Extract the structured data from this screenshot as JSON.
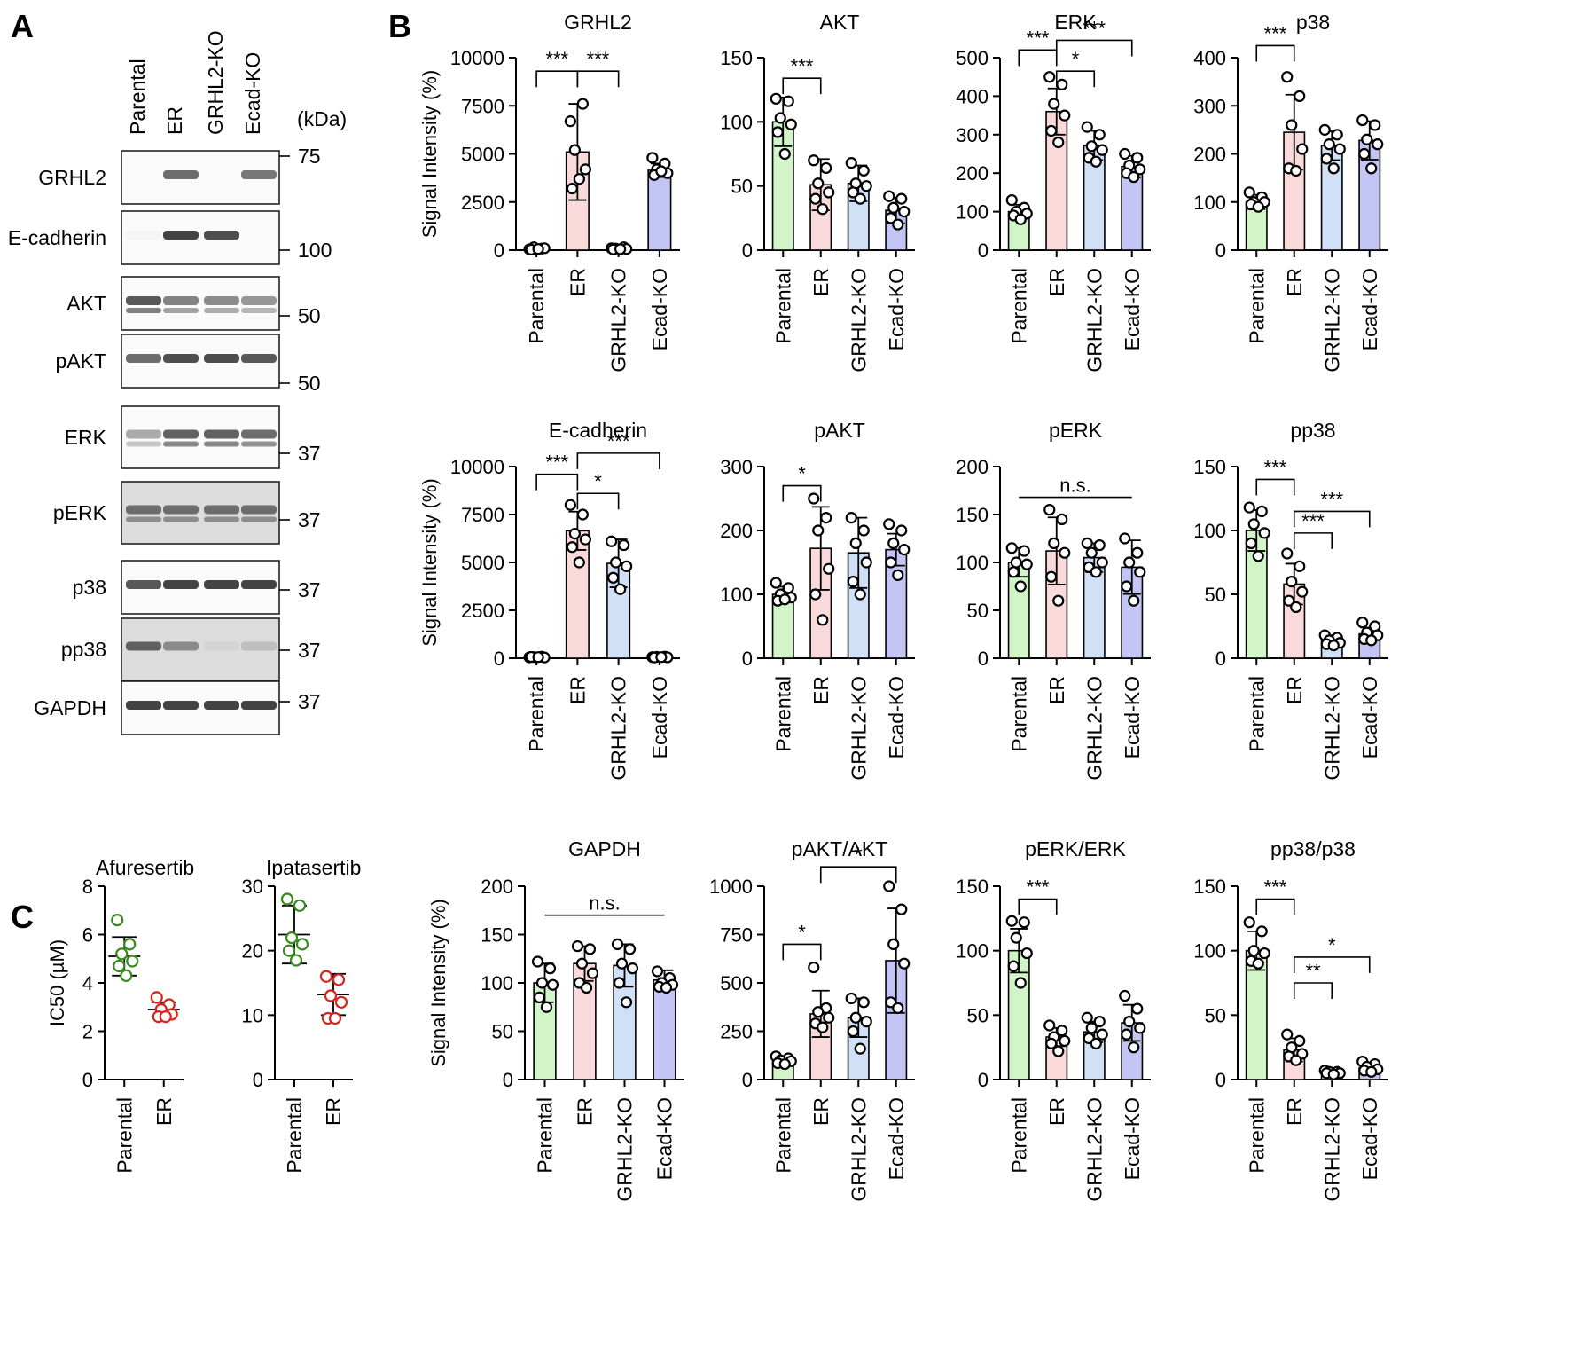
{
  "panel_labels": {
    "a": "A",
    "b": "B",
    "c": "C"
  },
  "colors": {
    "parental": "#d2f5c8",
    "er": "#f9d9d9",
    "grhl2_ko": "#cfe0f7",
    "ecad_ko": "#c3c6f5",
    "afuresertib_parental": "#3a8a1f",
    "afuresertib_er": "#d9231d"
  },
  "western_blot": {
    "lanes": [
      "Parental",
      "ER",
      "GRHL2-KO",
      "Ecad-KO"
    ],
    "kda_header": "(kDa)",
    "rows": [
      {
        "label": "GRHL2",
        "intensity": [
          0.0,
          0.7,
          0.0,
          0.65
        ]
      },
      {
        "label": "E-cadherin",
        "intensity": [
          0.05,
          0.9,
          0.85,
          0.0
        ]
      },
      {
        "label": "AKT",
        "intensity": [
          0.8,
          0.6,
          0.55,
          0.5
        ]
      },
      {
        "label": "pAKT",
        "intensity": [
          0.7,
          0.85,
          0.85,
          0.8
        ]
      },
      {
        "label": "ERK",
        "intensity": [
          0.4,
          0.75,
          0.75,
          0.7
        ]
      },
      {
        "label": "pERK",
        "intensity": [
          0.7,
          0.7,
          0.7,
          0.7
        ]
      },
      {
        "label": "p38",
        "intensity": [
          0.8,
          0.9,
          0.9,
          0.9
        ]
      },
      {
        "label": "pp38",
        "intensity": [
          0.75,
          0.55,
          0.2,
          0.3
        ]
      },
      {
        "label": "GAPDH",
        "intensity": [
          0.9,
          0.9,
          0.9,
          0.9
        ]
      }
    ],
    "markers": [
      "75",
      "100",
      "50",
      "50",
      "37",
      "37",
      "37",
      "37",
      "37"
    ]
  },
  "chart_data": [
    {
      "id": "grhl2",
      "type": "bar",
      "title": "GRHL2",
      "ylabel": "Signal Intensity (%)",
      "ylim": [
        0,
        10000
      ],
      "yticks": [
        "0",
        "2500",
        "5000",
        "7500",
        "10000"
      ],
      "categories": [
        "Parental",
        "ER",
        "GRHL2-KO",
        "Ecad-KO"
      ],
      "values": [
        60,
        5100,
        80,
        4150
      ],
      "errors": [
        40,
        2500,
        40,
        350
      ],
      "points": [
        [
          50,
          80,
          150,
          100,
          30,
          60
        ],
        [
          6700,
          7600,
          5200,
          4200,
          3200,
          3700
        ],
        [
          100,
          150,
          80,
          60,
          40,
          50
        ],
        [
          4800,
          4500,
          4200,
          4000,
          3900,
          4100
        ]
      ],
      "sig": [
        {
          "from": 0,
          "to": 1,
          "label": "***",
          "level": 9300
        },
        {
          "from": 1,
          "to": 2,
          "label": "***",
          "level": 9300
        }
      ]
    },
    {
      "id": "akt",
      "type": "bar",
      "title": "AKT",
      "ylabel": "",
      "ylim": [
        0,
        150
      ],
      "yticks": [
        "0",
        "50",
        "100",
        "150"
      ],
      "categories": [
        "Parental",
        "ER",
        "GRHL2-KO",
        "Ecad-KO"
      ],
      "values": [
        100,
        51,
        52,
        31
      ],
      "errors": [
        19,
        20,
        14,
        10
      ],
      "points": [
        [
          118,
          116,
          103,
          98,
          92,
          75
        ],
        [
          70,
          64,
          52,
          45,
          40,
          32
        ],
        [
          68,
          62,
          52,
          50,
          45,
          40
        ],
        [
          42,
          40,
          33,
          30,
          25,
          20
        ]
      ],
      "sig": [
        {
          "from": 0,
          "to": 1,
          "label": "***",
          "level": 134
        }
      ]
    },
    {
      "id": "erk",
      "type": "bar",
      "title": "ERK",
      "ylabel": "",
      "ylim": [
        0,
        500
      ],
      "yticks": [
        "0",
        "100",
        "200",
        "300",
        "400",
        "500"
      ],
      "categories": [
        "Parental",
        "ER",
        "GRHL2-KO",
        "Ecad-KO"
      ],
      "values": [
        100,
        360,
        272,
        217
      ],
      "errors": [
        18,
        60,
        38,
        28
      ],
      "points": [
        [
          130,
          110,
          100,
          95,
          90,
          80
        ],
        [
          450,
          430,
          380,
          350,
          310,
          280
        ],
        [
          320,
          300,
          270,
          260,
          240,
          230
        ],
        [
          250,
          240,
          220,
          210,
          200,
          190
        ]
      ],
      "sig": [
        {
          "from": 0,
          "to": 1,
          "label": "***",
          "level": 520
        },
        {
          "from": 1,
          "to": 2,
          "label": "*",
          "level": 465
        },
        {
          "from": 1,
          "to": 3,
          "label": "***",
          "level": 545
        }
      ]
    },
    {
      "id": "p38",
      "type": "bar",
      "title": "p38",
      "ylabel": "",
      "ylim": [
        0,
        400
      ],
      "yticks": [
        "0",
        "100",
        "200",
        "300",
        "400"
      ],
      "categories": [
        "Parental",
        "ER",
        "GRHL2-KO",
        "Ecad-KO"
      ],
      "values": [
        100,
        245,
        217,
        228
      ],
      "errors": [
        15,
        78,
        30,
        40
      ],
      "points": [
        [
          120,
          110,
          100,
          100,
          95,
          90
        ],
        [
          360,
          320,
          260,
          210,
          170,
          165
        ],
        [
          250,
          240,
          220,
          210,
          190,
          170
        ],
        [
          270,
          260,
          230,
          220,
          200,
          170
        ]
      ],
      "sig": [
        {
          "from": 0,
          "to": 1,
          "label": "***",
          "level": 425
        }
      ]
    },
    {
      "id": "ecad",
      "type": "bar",
      "title": "E-cadherin",
      "ylabel": "Signal Intensity (%)",
      "ylim": [
        0,
        10000
      ],
      "yticks": [
        "0",
        "2500",
        "5000",
        "7500",
        "10000"
      ],
      "categories": [
        "Parental",
        "ER",
        "GRHL2-KO",
        "Ecad-KO"
      ],
      "values": [
        60,
        6650,
        4950,
        70
      ],
      "errors": [
        30,
        1000,
        1250,
        30
      ],
      "points": [
        [
          50,
          80,
          60,
          40,
          70,
          60
        ],
        [
          8000,
          7500,
          6500,
          6200,
          5800,
          5000
        ],
        [
          6100,
          5900,
          5000,
          4800,
          4200,
          3600
        ],
        [
          60,
          80,
          70,
          50,
          40,
          60
        ]
      ],
      "sig": [
        {
          "from": 0,
          "to": 1,
          "label": "***",
          "level": 9600
        },
        {
          "from": 1,
          "to": 2,
          "label": "*",
          "level": 8600
        },
        {
          "from": 1,
          "to": 3,
          "label": "***",
          "level": 10700
        }
      ]
    },
    {
      "id": "pakt",
      "type": "bar",
      "title": "pAKT",
      "ylabel": "",
      "ylim": [
        0,
        300
      ],
      "yticks": [
        "0",
        "100",
        "200",
        "300"
      ],
      "categories": [
        "Parental",
        "ER",
        "GRHL2-KO",
        "Ecad-KO"
      ],
      "values": [
        100,
        172,
        165,
        170
      ],
      "errors": [
        12,
        65,
        55,
        25
      ],
      "points": [
        [
          118,
          110,
          100,
          95,
          90,
          92
        ],
        [
          250,
          220,
          200,
          140,
          100,
          60
        ],
        [
          220,
          200,
          180,
          150,
          120,
          100
        ],
        [
          210,
          200,
          180,
          170,
          150,
          130
        ]
      ],
      "sig": [
        {
          "from": 0,
          "to": 1,
          "label": "*",
          "level": 270
        }
      ]
    },
    {
      "id": "perk",
      "type": "bar",
      "title": "pERK",
      "ylabel": "",
      "ylim": [
        0,
        200
      ],
      "yticks": [
        "0",
        "50",
        "100",
        "150",
        "200"
      ],
      "categories": [
        "Parental",
        "ER",
        "GRHL2-KO",
        "Ecad-KO"
      ],
      "values": [
        100,
        112,
        105,
        95
      ],
      "errors": [
        15,
        35,
        15,
        28
      ],
      "points": [
        [
          115,
          112,
          100,
          98,
          90,
          75
        ],
        [
          155,
          145,
          120,
          110,
          85,
          60
        ],
        [
          120,
          118,
          110,
          100,
          95,
          90
        ],
        [
          125,
          110,
          100,
          90,
          75,
          60
        ]
      ],
      "sig": [
        {
          "from": 0,
          "to": 3,
          "label": "n.s.",
          "level": 168,
          "flat": true
        }
      ]
    },
    {
      "id": "pp38",
      "type": "bar",
      "title": "pp38",
      "ylabel": "",
      "ylim": [
        0,
        150
      ],
      "yticks": [
        "0",
        "50",
        "100",
        "150"
      ],
      "categories": [
        "Parental",
        "ER",
        "GRHL2-KO",
        "Ecad-KO"
      ],
      "values": [
        100,
        58,
        14,
        19
      ],
      "errors": [
        16,
        16,
        4,
        5
      ],
      "points": [
        [
          118,
          115,
          105,
          98,
          90,
          80
        ],
        [
          82,
          72,
          60,
          52,
          45,
          40
        ],
        [
          18,
          16,
          14,
          12,
          11,
          10
        ],
        [
          28,
          25,
          20,
          18,
          15,
          14
        ]
      ],
      "sig": [
        {
          "from": 0,
          "to": 1,
          "label": "***",
          "level": 140
        },
        {
          "from": 1,
          "to": 2,
          "label": "***",
          "level": 98
        },
        {
          "from": 1,
          "to": 3,
          "label": "***",
          "level": 115
        }
      ]
    },
    {
      "id": "gapdh",
      "type": "bar",
      "title": "GAPDH",
      "ylabel": "Signal Intensity (%)",
      "ylim": [
        0,
        200
      ],
      "yticks": [
        "0",
        "50",
        "100",
        "150",
        "200"
      ],
      "categories": [
        "Parental",
        "ER",
        "GRHL2-KO",
        "Ecad-KO"
      ],
      "values": [
        100,
        120,
        118,
        103
      ],
      "errors": [
        20,
        18,
        22,
        10
      ],
      "points": [
        [
          122,
          115,
          100,
          98,
          85,
          75
        ],
        [
          138,
          135,
          120,
          110,
          100,
          95
        ],
        [
          140,
          135,
          120,
          115,
          100,
          80
        ],
        [
          112,
          105,
          100,
          98,
          96,
          95
        ]
      ],
      "sig": [
        {
          "from": 0,
          "to": 3,
          "label": "n.s.",
          "level": 170,
          "flat": true
        }
      ]
    },
    {
      "id": "pakt_akt",
      "type": "bar",
      "title": "pAKT/AKT",
      "ylabel": "",
      "ylim": [
        0,
        1000
      ],
      "yticks": [
        "0",
        "250",
        "500",
        "750",
        "1000"
      ],
      "categories": [
        "Parental",
        "ER",
        "GRHL2-KO",
        "Ecad-KO"
      ],
      "values": [
        100,
        340,
        320,
        615
      ],
      "errors": [
        20,
        120,
        100,
        270
      ],
      "points": [
        [
          120,
          110,
          100,
          95,
          85,
          80
        ],
        [
          580,
          370,
          350,
          320,
          290,
          270
        ],
        [
          420,
          400,
          320,
          300,
          250,
          160
        ],
        [
          1000,
          880,
          700,
          600,
          400,
          370
        ]
      ],
      "sig": [
        {
          "from": 0,
          "to": 1,
          "label": "*",
          "level": 700
        },
        {
          "from": 1,
          "to": 3,
          "label": "*",
          "level": 1100
        }
      ]
    },
    {
      "id": "perk_erk",
      "type": "bar",
      "title": "pERK/ERK",
      "ylabel": "",
      "ylim": [
        0,
        150
      ],
      "yticks": [
        "0",
        "50",
        "100",
        "150"
      ],
      "categories": [
        "Parental",
        "ER",
        "GRHL2-KO",
        "Ecad-KO"
      ],
      "values": [
        100,
        33,
        37,
        44
      ],
      "errors": [
        17,
        7,
        8,
        14
      ],
      "points": [
        [
          123,
          122,
          110,
          98,
          88,
          75
        ],
        [
          42,
          38,
          33,
          30,
          28,
          22
        ],
        [
          48,
          45,
          40,
          35,
          32,
          28
        ],
        [
          65,
          55,
          45,
          40,
          35,
          25
        ]
      ],
      "sig": [
        {
          "from": 0,
          "to": 1,
          "label": "***",
          "level": 140
        }
      ]
    },
    {
      "id": "pp38_p38",
      "type": "bar",
      "title": "pp38/p38",
      "ylabel": "",
      "ylim": [
        0,
        150
      ],
      "yticks": [
        "0",
        "50",
        "100",
        "150"
      ],
      "categories": [
        "Parental",
        "ER",
        "GRHL2-KO",
        "Ecad-KO"
      ],
      "values": [
        100,
        23,
        6,
        9
      ],
      "errors": [
        15,
        9,
        2,
        4
      ],
      "points": [
        [
          122,
          115,
          100,
          98,
          92,
          90
        ],
        [
          35,
          30,
          25,
          20,
          18,
          15
        ],
        [
          7,
          6,
          6,
          5,
          5,
          4
        ],
        [
          14,
          12,
          10,
          8,
          7,
          6
        ]
      ],
      "sig": [
        {
          "from": 0,
          "to": 1,
          "label": "***",
          "level": 140
        },
        {
          "from": 1,
          "to": 2,
          "label": "**",
          "level": 75
        },
        {
          "from": 1,
          "to": 3,
          "label": "*",
          "level": 95
        }
      ]
    },
    {
      "id": "afuresertib",
      "type": "scatter",
      "title": "Afuresertib",
      "ylabel": "IC50 (µM)",
      "ylim": [
        0,
        8
      ],
      "yticks": [
        "0",
        "2",
        "4",
        "6",
        "8"
      ],
      "categories": [
        "Parental",
        "ER"
      ],
      "values": [
        5.1,
        2.9
      ],
      "errors": [
        0.8,
        0.3
      ],
      "points": [
        [
          6.6,
          5.6,
          5.2,
          4.9,
          4.7,
          4.3
        ],
        [
          3.4,
          3.1,
          2.9,
          2.7,
          2.6,
          2.6
        ]
      ]
    },
    {
      "id": "ipatasertib",
      "type": "scatter",
      "title": "Ipatasertib",
      "ylabel": "",
      "ylim": [
        0,
        30
      ],
      "yticks": [
        "0",
        "10",
        "20",
        "30"
      ],
      "categories": [
        "Parental",
        "ER"
      ],
      "values": [
        22.5,
        13.2
      ],
      "errors": [
        4.5,
        3.2
      ],
      "points": [
        [
          28,
          27,
          22,
          21,
          20,
          18.5
        ],
        [
          16,
          15.5,
          13,
          12,
          9.5,
          9.5
        ]
      ]
    }
  ]
}
